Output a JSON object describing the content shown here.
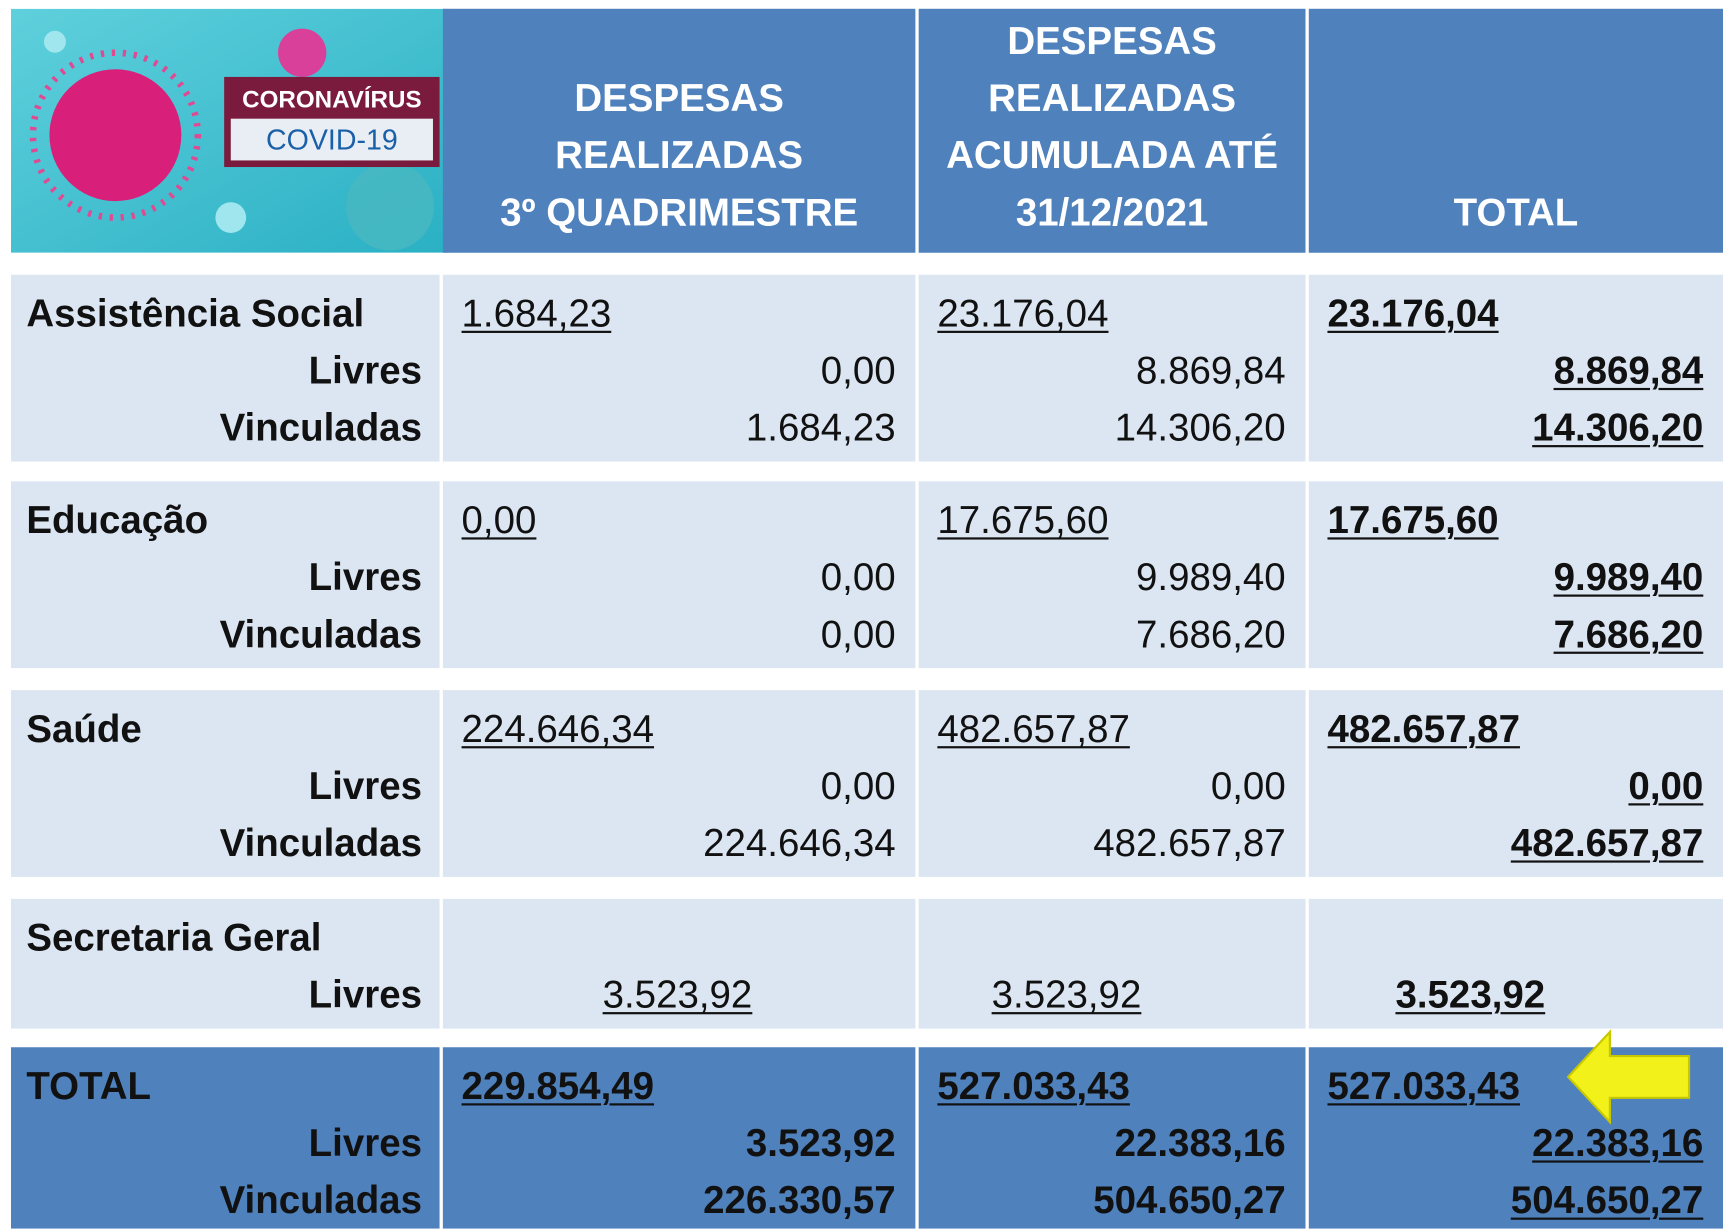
{
  "banner": {
    "line1": "CORONAVÍRUS",
    "line2": "COVID-19"
  },
  "columns": [
    [
      "DESPESAS",
      "REALIZADAS",
      "3º  QUADRIMESTRE"
    ],
    [
      "DESPESAS",
      "REALIZADAS",
      "ACUMULADA ATÉ",
      "31/12/2021"
    ],
    [
      "TOTAL"
    ]
  ],
  "sections": [
    {
      "name": "Assistência Social",
      "total": [
        "1.684,23",
        "23.176,04",
        "23.176,04"
      ],
      "rows": [
        {
          "label": "Livres",
          "values": [
            "0,00",
            "8.869,84",
            "8.869,84"
          ]
        },
        {
          "label": "Vinculadas",
          "values": [
            "1.684,23",
            "14.306,20",
            "14.306,20"
          ]
        }
      ]
    },
    {
      "name": "Educação",
      "total": [
        "0,00",
        "17.675,60",
        "17.675,60"
      ],
      "rows": [
        {
          "label": "Livres",
          "values": [
            "0,00",
            "9.989,40",
            "9.989,40"
          ]
        },
        {
          "label": "Vinculadas",
          "values": [
            "0,00",
            "7.686,20",
            "7.686,20"
          ]
        }
      ]
    },
    {
      "name": "Saúde",
      "total": [
        "224.646,34",
        "482.657,87",
        "482.657,87"
      ],
      "rows": [
        {
          "label": "Livres",
          "values": [
            "0,00",
            "0,00",
            "0,00"
          ]
        },
        {
          "label": "Vinculadas",
          "values": [
            "224.646,34",
            "482.657,87",
            "482.657,87"
          ]
        }
      ]
    },
    {
      "name": "Secretaria Geral",
      "rows": [
        {
          "label": "Livres",
          "values": [
            "3.523,92",
            "3.523,92",
            "3.523,92"
          ]
        }
      ]
    },
    {
      "name": "TOTAL",
      "total": [
        "229.854,49",
        "527.033,43",
        "527.033,43"
      ],
      "rows": [
        {
          "label": "Livres",
          "values": [
            "3.523,92",
            "22.383,16",
            "22.383,16"
          ]
        },
        {
          "label": "Vinculadas",
          "values": [
            "226.330,57",
            "504.650,27",
            "504.650,27"
          ]
        }
      ]
    }
  ]
}
